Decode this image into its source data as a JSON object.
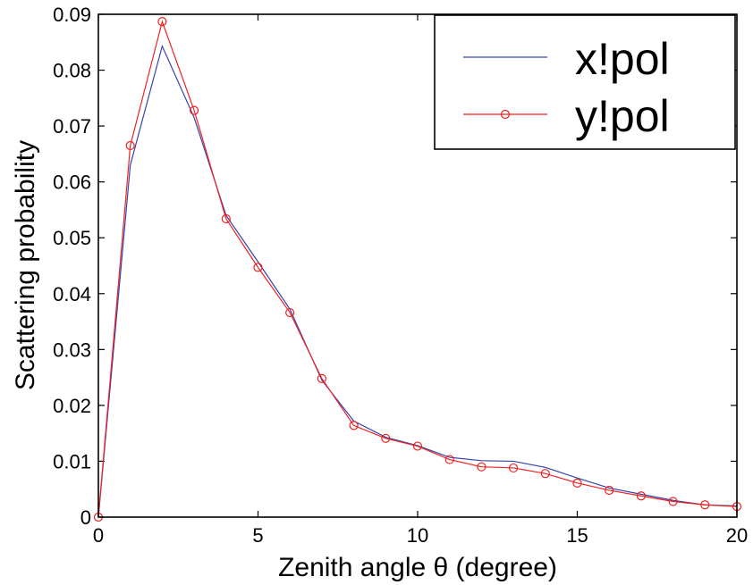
{
  "chart_data": {
    "type": "line",
    "title": "",
    "xlabel": "Zenith angle θ (degree)",
    "ylabel": "Scattering probability",
    "xlim": [
      0,
      20
    ],
    "ylim": [
      0,
      0.09
    ],
    "xticks": [
      0,
      5,
      10,
      15,
      20
    ],
    "xtick_labels": [
      "0",
      "5",
      "10",
      "15",
      "20"
    ],
    "yticks": [
      0,
      0.01,
      0.02,
      0.03,
      0.04,
      0.05,
      0.06,
      0.07,
      0.08,
      0.09
    ],
    "ytick_labels": [
      "0",
      "0.01",
      "0.02",
      "0.03",
      "0.04",
      "0.05",
      "0.06",
      "0.07",
      "0.08",
      "0.09"
    ],
    "grid": false,
    "legend_position": "top-right",
    "x": [
      0,
      1,
      2,
      3,
      4,
      5,
      6,
      7,
      8,
      9,
      10,
      11,
      12,
      13,
      14,
      15,
      16,
      17,
      18,
      19,
      20
    ],
    "series": [
      {
        "name": "x!pol",
        "color": "#3344aa",
        "marker": "none",
        "values": [
          0.0,
          0.063,
          0.0843,
          0.0715,
          0.054,
          0.0457,
          0.0372,
          0.0245,
          0.0172,
          0.0143,
          0.0128,
          0.0107,
          0.0101,
          0.01,
          0.0089,
          0.007,
          0.0052,
          0.0041,
          0.003,
          0.0022,
          0.002
        ]
      },
      {
        "name": "y!pol",
        "color": "#ee2222",
        "marker": "circle",
        "values": [
          0.0,
          0.0665,
          0.0887,
          0.0728,
          0.0534,
          0.0447,
          0.0366,
          0.0248,
          0.0164,
          0.0141,
          0.0127,
          0.0103,
          0.009,
          0.0088,
          0.0078,
          0.0061,
          0.0048,
          0.0038,
          0.0028,
          0.0022,
          0.0019
        ]
      }
    ]
  }
}
